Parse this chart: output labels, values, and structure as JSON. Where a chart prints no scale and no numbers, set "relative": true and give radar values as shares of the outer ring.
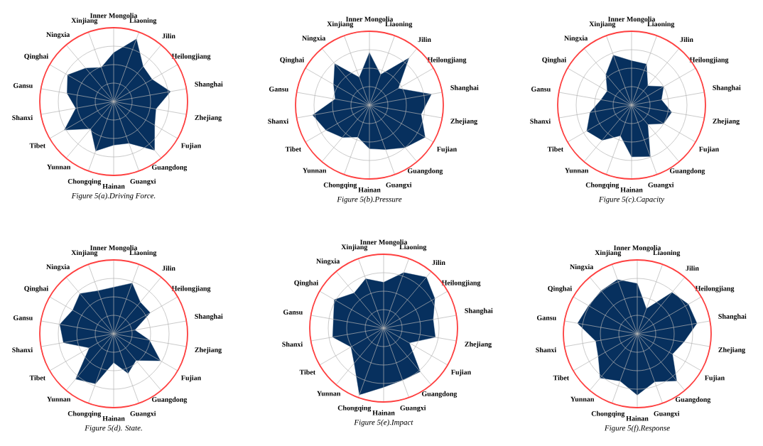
{
  "chart_data": [
    {
      "type": "radar",
      "title": "*Figure 5(a).Driving Force.*",
      "relative": true,
      "grid": true,
      "marker": "none",
      "categories": [
        "Inner Mongolia",
        "Liaoning",
        "Jilin",
        "Heilongjiang",
        "Shanghai",
        "Zhejiang",
        "Fujian",
        "Guangdong",
        "Guangxi",
        "Hainan",
        "Chongqing",
        "Yunnan",
        "Tibet",
        "Shanxi",
        "Gansu",
        "Qinghai",
        "Ningxia",
        "Xinjiang"
      ],
      "series": [
        {
          "color": "#07305e",
          "values": [
            0.66,
            0.9,
            0.62,
            0.6,
            0.78,
            0.58,
            0.64,
            0.86,
            0.6,
            0.59,
            0.71,
            0.48,
            0.77,
            0.52,
            0.64,
            0.72,
            0.59,
            0.49
          ]
        }
      ]
    },
    {
      "type": "radar",
      "title": "*Figure 5(b).Pressure*",
      "relative": true,
      "grid": true,
      "marker": "none",
      "categories": [
        "Inner Mongolia",
        "Liaoning",
        "Jilin",
        "Heilongjiang",
        "Shanghai",
        "Zhejiang",
        "Fujian",
        "Guangdong",
        "Guangxi",
        "Hainan",
        "Chongqing",
        "Yunnan",
        "Tibet",
        "Shanxi",
        "Gansu",
        "Qinghai",
        "Ningxia",
        "Xinjiang"
      ],
      "series": [
        {
          "color": "#07305e",
          "values": [
            0.71,
            0.44,
            0.83,
            0.45,
            0.85,
            0.71,
            0.87,
            0.75,
            0.64,
            0.59,
            0.46,
            0.57,
            0.68,
            0.78,
            0.47,
            0.56,
            0.73,
            0.4
          ]
        }
      ]
    },
    {
      "type": "radar",
      "title": "*Figure 5(c).Capacity*",
      "relative": true,
      "grid": true,
      "marker": "none",
      "categories": [
        "Inner Mongolia",
        "Liaoning",
        "Jilin",
        "Heilongjiang",
        "Shanghai",
        "Zhejiang",
        "Fujian",
        "Guangdong",
        "Guangxi",
        "Hainan",
        "Chongqing",
        "Yunnan",
        "Tibet",
        "Shanxi",
        "Gansu",
        "Qinghai",
        "Ningxia",
        "Xinjiang"
      ],
      "series": [
        {
          "color": "#07305e",
          "values": [
            0.6,
            0.59,
            0.34,
            0.5,
            0.41,
            0.55,
            0.5,
            0.34,
            0.74,
            0.7,
            0.44,
            0.62,
            0.7,
            0.57,
            0.42,
            0.38,
            0.54,
            0.72
          ]
        }
      ]
    },
    {
      "type": "radar",
      "title": "*Figure 5(d). State.*",
      "relative": true,
      "grid": true,
      "marker": "none",
      "categories": [
        "Inner Mongolia",
        "Liaoning",
        "Jilin",
        "Heilongjiang",
        "Shanghai",
        "Zhejiang",
        "Fujian",
        "Guangdong",
        "Guangxi",
        "Hainan",
        "Chongqing",
        "Yunnan",
        "Tibet",
        "Shanxi",
        "Gansu",
        "Qinghai",
        "Ningxia",
        "Xinjiang"
      ],
      "series": [
        {
          "color": "#07305e",
          "values": [
            0.63,
            0.73,
            0.56,
            0.57,
            0.29,
            0.49,
            0.73,
            0.47,
            0.57,
            0.39,
            0.72,
            0.8,
            0.38,
            0.69,
            0.74,
            0.64,
            0.71,
            0.62
          ]
        }
      ]
    },
    {
      "type": "radar",
      "title": "*Figure 5(e).Impact*",
      "relative": true,
      "grid": true,
      "marker": "none",
      "categories": [
        "Inner Mongolia",
        "Liaoning",
        "Jilin",
        "Heilongjiang",
        "Shanghai",
        "Zhejiang",
        "Fujian",
        "Guangdong",
        "Guangxi",
        "Hainan",
        "Chongqing",
        "Yunnan",
        "Tibet",
        "Shanxi",
        "Gansu",
        "Qinghai",
        "Ningxia",
        "Xinjiang"
      ],
      "series": [
        {
          "color": "#07305e",
          "values": [
            0.62,
            0.8,
            0.9,
            0.8,
            0.68,
            0.71,
            0.4,
            0.77,
            0.75,
            0.8,
            0.96,
            0.62,
            0.51,
            0.7,
            0.69,
            0.77,
            0.62,
            0.71
          ]
        }
      ]
    },
    {
      "type": "radar",
      "title": "*Figure 5(f).Response*",
      "relative": true,
      "grid": true,
      "marker": "none",
      "categories": [
        "Inner Mongolia",
        "Liaoning",
        "Jilin",
        "Heilongjiang",
        "Shanghai",
        "Zhejiang",
        "Fujian",
        "Guangdong",
        "Guangxi",
        "Hainan",
        "Chongqing",
        "Yunnan",
        "Tibet",
        "Shanxi",
        "Gansu",
        "Qinghai",
        "Ningxia",
        "Xinjiang"
      ],
      "series": [
        {
          "color": "#07305e",
          "values": [
            0.68,
            0.36,
            0.73,
            0.8,
            0.82,
            0.64,
            0.55,
            0.83,
            0.69,
            0.83,
            0.68,
            0.78,
            0.61,
            0.57,
            0.82,
            0.76,
            0.76,
            0.78
          ]
        }
      ]
    }
  ]
}
